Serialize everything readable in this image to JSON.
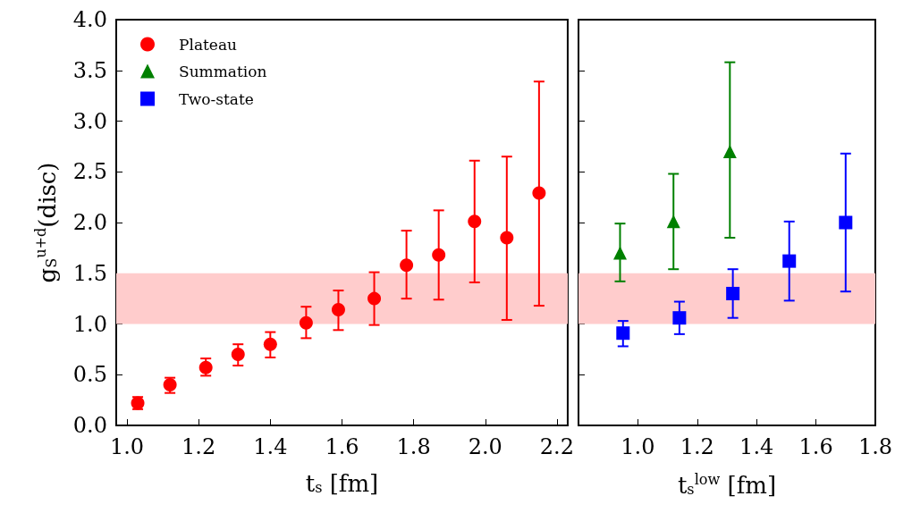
{
  "chart_data": [
    {
      "type": "scatter",
      "xlabel": "t$_{s}$ [fm]",
      "ylabel": "g$_{S}$$^{u+d}$(disc)",
      "xlim": [
        0.97,
        2.23
      ],
      "xticks": [
        {
          "value": 1.0,
          "label": "1.0"
        },
        {
          "value": 1.2,
          "label": "1.2"
        },
        {
          "value": 1.4,
          "label": "1.4"
        },
        {
          "value": 1.6,
          "label": "1.6"
        },
        {
          "value": 1.8,
          "label": "1.8"
        },
        {
          "value": 2.0,
          "label": "2.0"
        },
        {
          "value": 2.2,
          "label": "2.2"
        }
      ],
      "ylim": [
        0,
        4
      ],
      "yticks": [
        {
          "value": 0,
          "label": "0.0"
        },
        {
          "value": 0.5,
          "label": "0.5"
        },
        {
          "value": 1.0,
          "label": "1.0"
        },
        {
          "value": 1.5,
          "label": "1.5"
        },
        {
          "value": 2.0,
          "label": "2.0"
        },
        {
          "value": 2.5,
          "label": "2.5"
        },
        {
          "value": 3.0,
          "label": "3.0"
        },
        {
          "value": 3.5,
          "label": "3.5"
        },
        {
          "value": 4.0,
          "label": "4.0"
        }
      ],
      "bands": [
        {
          "axis": "y",
          "from": 1.0,
          "to": 1.5,
          "color": "#ffcccc"
        }
      ],
      "legend": "top left",
      "grid": false,
      "series": [
        {
          "name": "Plateau",
          "color": "#ff0000",
          "marker": "circle",
          "x": [
            1.03,
            1.12,
            1.22,
            1.31,
            1.4,
            1.5,
            1.59,
            1.69,
            1.78,
            1.87,
            1.97,
            2.06,
            2.15
          ],
          "values": [
            0.22,
            0.4,
            0.57,
            0.7,
            0.8,
            1.01,
            1.14,
            1.25,
            1.58,
            1.68,
            2.01,
            1.85,
            2.29
          ],
          "errors": [
            [
              0.16,
              0.28
            ],
            [
              0.32,
              0.47
            ],
            [
              0.49,
              0.66
            ],
            [
              0.59,
              0.8
            ],
            [
              0.67,
              0.92
            ],
            [
              0.86,
              1.17
            ],
            [
              0.94,
              1.33
            ],
            [
              0.99,
              1.51
            ],
            [
              1.25,
              1.92
            ],
            [
              1.24,
              2.12
            ],
            [
              1.41,
              2.61
            ],
            [
              1.04,
              2.65
            ],
            [
              1.18,
              3.39
            ]
          ]
        }
      ]
    },
    {
      "type": "scatter",
      "xlabel": "t$_{s}$$^{low}$ [fm]",
      "xlim": [
        0.8,
        1.8
      ],
      "xticks": [
        {
          "value": 1.0,
          "label": "1.0"
        },
        {
          "value": 1.2,
          "label": "1.2"
        },
        {
          "value": 1.4,
          "label": "1.4"
        },
        {
          "value": 1.6,
          "label": "1.6"
        },
        {
          "value": 1.8,
          "label": "1.8"
        }
      ],
      "ylim": [
        0,
        4
      ],
      "tick_labels": "x",
      "legend": "top left",
      "bands": [
        {
          "axis": "y",
          "from": 1.0,
          "to": 1.5,
          "color": "#ffcccc"
        }
      ],
      "grid": false,
      "series": [
        {
          "name": "Summation",
          "color": "#008000",
          "marker": "triangle",
          "x": [
            0.94,
            1.12,
            1.31
          ],
          "values": [
            1.7,
            2.01,
            2.7
          ],
          "errors": [
            [
              1.42,
              1.99
            ],
            [
              1.54,
              2.48
            ],
            [
              1.85,
              3.58
            ]
          ]
        },
        {
          "name": "Two-state",
          "color": "#0000ff",
          "marker": "square",
          "x": [
            0.95,
            1.14,
            1.32,
            1.51,
            1.7
          ],
          "values": [
            0.91,
            1.06,
            1.3,
            1.62,
            2.0
          ],
          "errors": [
            [
              0.78,
              1.03
            ],
            [
              0.9,
              1.22
            ],
            [
              1.06,
              1.54
            ],
            [
              1.23,
              2.01
            ],
            [
              1.32,
              2.68
            ]
          ]
        }
      ]
    }
  ]
}
